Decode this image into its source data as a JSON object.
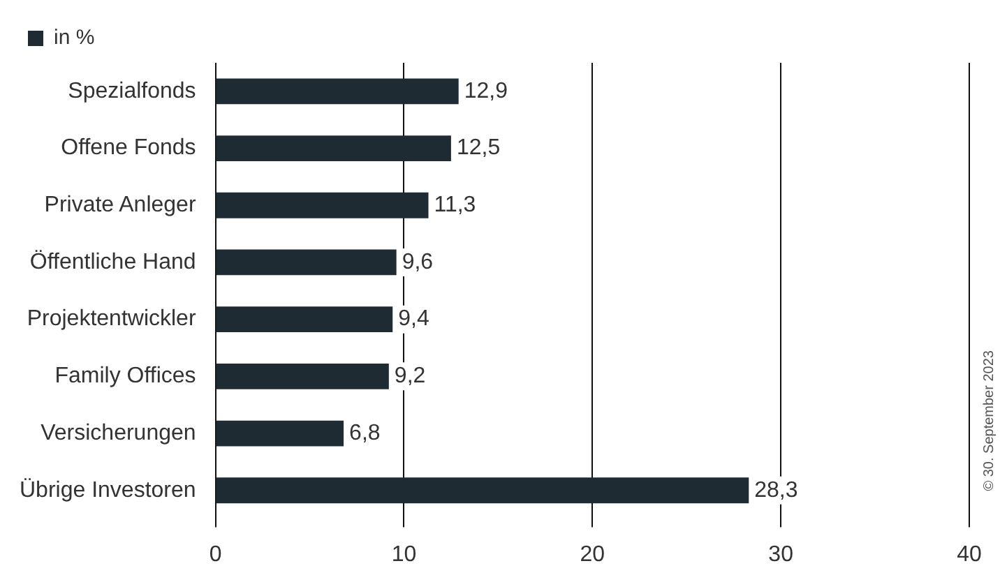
{
  "chart_data": {
    "type": "bar",
    "orientation": "horizontal",
    "categories": [
      "Spezialfonds",
      "Offene Fonds",
      "Private Anleger",
      "Öffentliche Hand",
      "Projektentwickler",
      "Family Offices",
      "Versicherungen",
      "Übrige Investoren"
    ],
    "series": [
      {
        "name": "in %",
        "color": "#1e2b33",
        "values": [
          12.9,
          12.5,
          11.3,
          9.6,
          9.4,
          9.2,
          6.8,
          28.3
        ]
      }
    ],
    "value_labels": [
      "12,9",
      "12,5",
      "11,3",
      "9,6",
      "9,4",
      "9,2",
      "6,8",
      "28,3"
    ],
    "xlim": [
      0,
      40
    ],
    "xticks": [
      0,
      10,
      20,
      30,
      40
    ],
    "grid": "x",
    "legend": "top left",
    "annotations": [
      "© 30. September 2023"
    ]
  }
}
